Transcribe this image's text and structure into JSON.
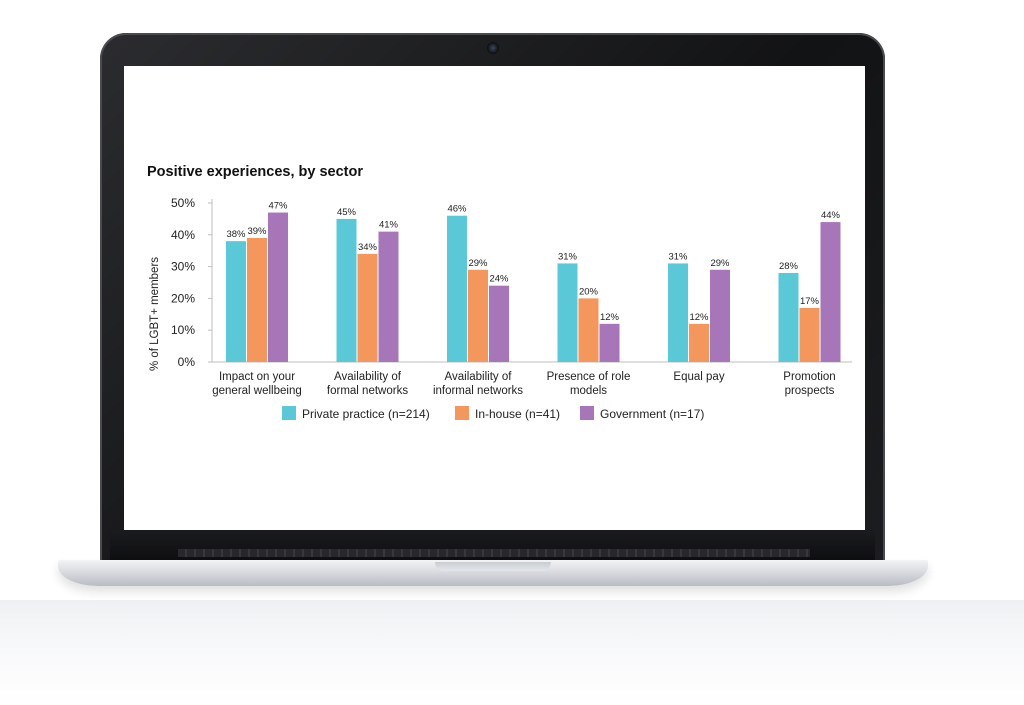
{
  "chart_data": {
    "type": "bar",
    "title": "Positive experiences, by sector",
    "ylabel": "% of LGBT+ members",
    "xlabel": "",
    "ylim": [
      0,
      50
    ],
    "yticks": [
      0,
      10,
      20,
      30,
      40,
      50
    ],
    "ytick_labels": [
      "0%",
      "10%",
      "20%",
      "30%",
      "40%",
      "50%"
    ],
    "grid": false,
    "legend_position": "bottom",
    "categories": [
      [
        "Impact on your",
        "general wellbeing"
      ],
      [
        "Availability of",
        "formal networks"
      ],
      [
        "Availability of",
        "informal networks"
      ],
      [
        "Presence of role",
        "models"
      ],
      [
        "Equal pay"
      ],
      [
        "Promotion",
        "prospects"
      ]
    ],
    "series": [
      {
        "name": "Private practice (n=214)",
        "color": "#5bc8d8",
        "values": [
          38,
          45,
          46,
          31,
          31,
          28
        ],
        "labels": [
          "38%",
          "45%",
          "46%",
          "31%",
          "31%",
          "28%"
        ]
      },
      {
        "name": "In-house (n=41)",
        "color": "#f4975d",
        "values": [
          39,
          34,
          29,
          20,
          12,
          17
        ],
        "labels": [
          "39%",
          "34%",
          "29%",
          "20%",
          "12%",
          "17%"
        ]
      },
      {
        "name": "Government (n=17)",
        "color": "#a676b8",
        "values": [
          47,
          41,
          24,
          12,
          29,
          44
        ],
        "labels": [
          "47%",
          "41%",
          "24%",
          "12%",
          "29%",
          "44%"
        ]
      }
    ]
  }
}
